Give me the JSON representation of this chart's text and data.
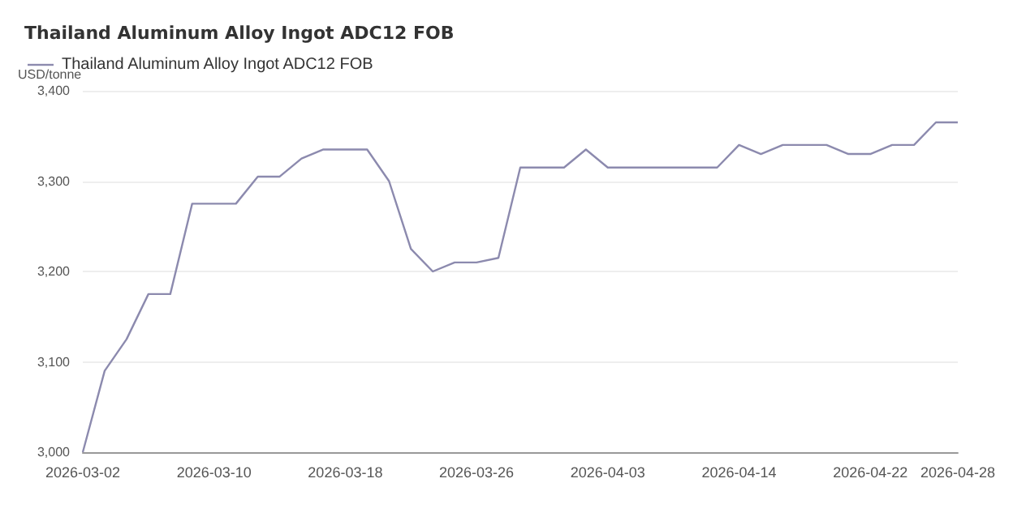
{
  "chart_data": {
    "type": "line",
    "title": "Thailand Aluminum Alloy Ingot ADC12 FOB",
    "ylabel": "USD/tonne",
    "categories": [
      "2026-03-02",
      null,
      null,
      null,
      null,
      null,
      "2026-03-10",
      null,
      null,
      null,
      null,
      null,
      "2026-03-18",
      null,
      null,
      null,
      null,
      null,
      "2026-03-26",
      null,
      null,
      null,
      null,
      null,
      "2026-04-03",
      null,
      null,
      null,
      null,
      null,
      "2026-04-14",
      null,
      null,
      null,
      null,
      null,
      "2026-04-22",
      null,
      null,
      null,
      "2026-04-28"
    ],
    "series": [
      {
        "name": "Thailand Aluminum Alloy Ingot ADC12 FOB",
        "color": "#8c8aae",
        "values": [
          3000,
          3090,
          3125,
          3175,
          3175,
          3275,
          3275,
          3275,
          3305,
          3305,
          3325,
          3335,
          3335,
          3335,
          3300,
          3225,
          3200,
          3210,
          3210,
          3215,
          3315,
          3315,
          3315,
          3335,
          3315,
          3315,
          3315,
          3315,
          3315,
          3315,
          3340,
          3330,
          3340,
          3340,
          3340,
          3330,
          3330,
          3340,
          3340,
          3365,
          3365
        ]
      }
    ],
    "ylim": [
      3000,
      3400
    ],
    "yticks": [
      {
        "value": 3000,
        "label": "3,000"
      },
      {
        "value": 3100,
        "label": "3,100"
      },
      {
        "value": 3200,
        "label": "3,200"
      },
      {
        "value": 3300,
        "label": "3,300"
      },
      {
        "value": 3400,
        "label": "3,400"
      }
    ],
    "grid": "y",
    "legend": "top left",
    "marker": "none",
    "line_style": "solid"
  }
}
